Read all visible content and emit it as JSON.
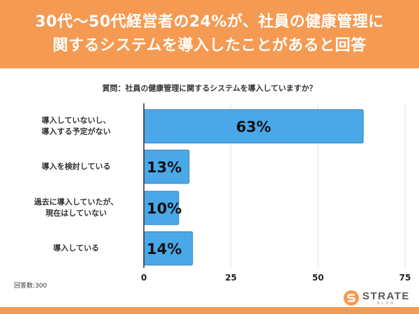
{
  "header": {
    "title_line1": "30代〜50代経営者の24%が、社員の健康管理に",
    "title_line2": "関するシステムを導入したことがあると回答"
  },
  "colors": {
    "header_bg": "#f59a52",
    "bar": "#4aa8e8",
    "bar_border": "#3b82c4",
    "axis": "#2d2d2d",
    "grid": "#e2e2e2"
  },
  "chart_data": {
    "type": "bar",
    "orientation": "horizontal",
    "title": "質問：社員の健康管理に関するシステムを導入していますか？",
    "categories": [
      [
        "導入していないし、",
        "導入する予定がない"
      ],
      [
        "導入を検討している"
      ],
      [
        "過去に導入していたが、",
        "現在はしていない"
      ],
      [
        "導入している"
      ]
    ],
    "values": [
      63,
      13,
      10,
      14
    ],
    "value_labels": [
      "63%",
      "13%",
      "10%",
      "14%"
    ],
    "xlim": [
      0,
      75
    ],
    "xticks": [
      0,
      25,
      50,
      75
    ],
    "xtick_labels": [
      "0",
      "25",
      "50",
      "75"
    ],
    "grid": true,
    "unit": "%"
  },
  "footer": {
    "respondents": "回答数:300",
    "logo_text": "STRATE",
    "logo_sub": "BLOG"
  }
}
